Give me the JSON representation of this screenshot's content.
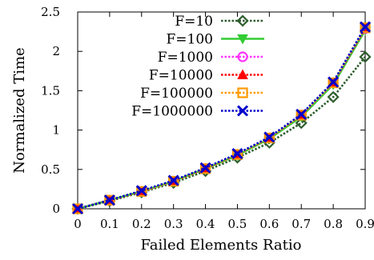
{
  "chart_data": {
    "type": "line",
    "title": "",
    "xlabel": "Failed Elements Ratio",
    "ylabel": "Normalized Time",
    "xlim": [
      0,
      0.9
    ],
    "ylim": [
      0,
      2.5
    ],
    "x": [
      0,
      0.1,
      0.2,
      0.3,
      0.4,
      0.5,
      0.6,
      0.7,
      0.8,
      0.9
    ],
    "x_tick_labels": [
      "0",
      "0.1",
      "0.2",
      "0.3",
      "0.4",
      "0.5",
      "0.6",
      "0.7",
      "0.8",
      "0.9"
    ],
    "y_tick_values": [
      0,
      0.5,
      1,
      1.5,
      2,
      2.5
    ],
    "y_tick_labels": [
      "0",
      "0.5",
      "1",
      "1.5",
      "2",
      "2.5"
    ],
    "grid": false,
    "legend_position": "top-left",
    "series": [
      {
        "name": "F=10",
        "color": "#2e5e2e",
        "dash": "dotted",
        "marker": "diamond",
        "values": [
          0.0,
          0.1,
          0.21,
          0.33,
          0.48,
          0.65,
          0.84,
          1.09,
          1.42,
          1.93
        ]
      },
      {
        "name": "F=100",
        "color": "#33cc33",
        "dash": "solid",
        "marker": "triangle-down",
        "values": [
          0.0,
          0.11,
          0.22,
          0.35,
          0.51,
          0.68,
          0.89,
          1.17,
          1.58,
          2.27
        ]
      },
      {
        "name": "F=1000",
        "color": "#ff33ff",
        "dash": "dotted",
        "marker": "circle",
        "values": [
          0.0,
          0.11,
          0.22,
          0.35,
          0.51,
          0.69,
          0.9,
          1.19,
          1.6,
          2.29
        ]
      },
      {
        "name": "F=10000",
        "color": "#ff0000",
        "dash": "dotted",
        "marker": "triangle-up",
        "values": [
          0.0,
          0.11,
          0.22,
          0.35,
          0.51,
          0.69,
          0.9,
          1.19,
          1.6,
          2.29
        ]
      },
      {
        "name": "F=100000",
        "color": "#ff9900",
        "dash": "dotted",
        "marker": "square",
        "values": [
          0.0,
          0.11,
          0.22,
          0.35,
          0.51,
          0.69,
          0.9,
          1.19,
          1.6,
          2.3
        ]
      },
      {
        "name": "F=1000000",
        "color": "#0000cc",
        "dash": "dotted",
        "marker": "x",
        "values": [
          0.0,
          0.11,
          0.23,
          0.36,
          0.52,
          0.7,
          0.91,
          1.2,
          1.61,
          2.31
        ]
      }
    ]
  }
}
